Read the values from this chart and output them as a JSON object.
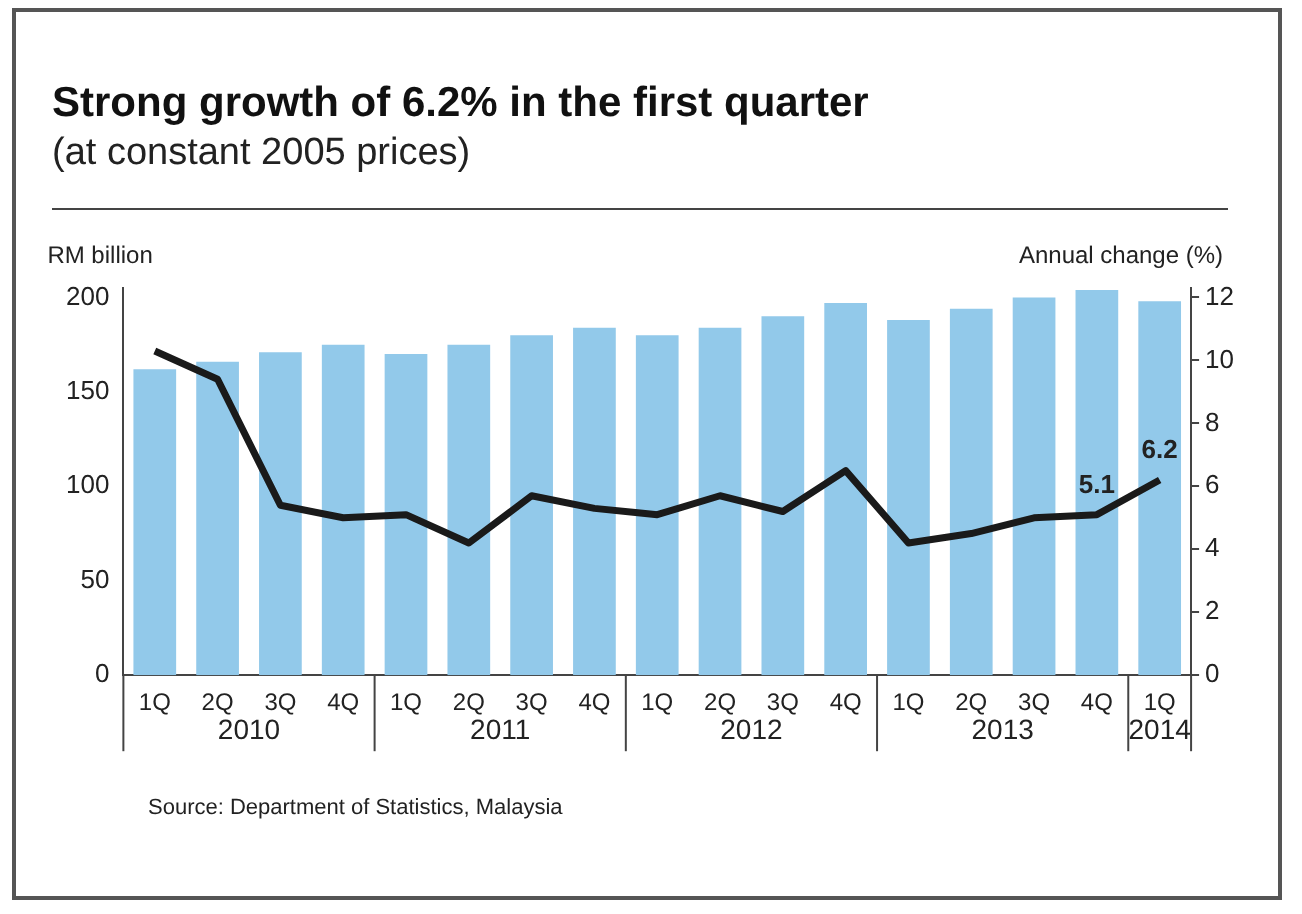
{
  "chart_data": {
    "type": "bar",
    "title": "Strong growth of 6.2% in the first quarter",
    "subtitle": "(at constant 2005 prices)",
    "ylabel": "RM billion",
    "y2label": "Annual change (%)",
    "categories": [
      "1Q",
      "2Q",
      "3Q",
      "4Q",
      "1Q",
      "2Q",
      "3Q",
      "4Q",
      "1Q",
      "2Q",
      "3Q",
      "4Q",
      "1Q",
      "2Q",
      "3Q",
      "4Q",
      "1Q"
    ],
    "series": [
      {
        "color": "#92c9ea",
        "values": [
          162,
          166,
          171,
          175,
          170,
          175,
          180,
          184,
          180,
          184,
          190,
          197,
          188,
          194,
          200,
          204,
          198
        ]
      },
      {
        "type": "line",
        "axis": "y2",
        "color": "#1a1a1a",
        "values": [
          10.3,
          9.4,
          5.4,
          5.0,
          5.1,
          4.2,
          5.7,
          5.3,
          5.1,
          5.7,
          5.2,
          6.5,
          4.2,
          4.5,
          5.0,
          5.1,
          6.2
        ],
        "value_labels": [
          null,
          null,
          null,
          null,
          null,
          null,
          null,
          null,
          null,
          null,
          null,
          null,
          null,
          null,
          null,
          "5.1",
          "6.2"
        ]
      }
    ],
    "ylim": [
      0,
      205
    ],
    "yticks": [
      0,
      50,
      100,
      150,
      200
    ],
    "y2lim": [
      0,
      12.3
    ],
    "y2ticks": [
      0,
      2,
      4,
      6,
      8,
      10,
      12
    ],
    "grid": false,
    "legend": false,
    "marker": "none",
    "line_style": "solid",
    "annotations": [
      "2010",
      "2011",
      "2012",
      "2013",
      "2014",
      "Source: Department of Statistics, Malaysia"
    ]
  }
}
